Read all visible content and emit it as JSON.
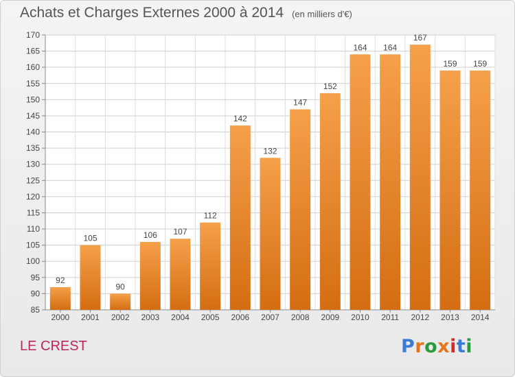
{
  "header": {
    "title": "Achats et Charges Externes 2000 à 2014",
    "unit": "(en milliers d'€)"
  },
  "footer": {
    "place": "LE CREST",
    "logo_text": "Proxiti",
    "logo_colors": [
      "#3a7bd5",
      "#e8731a",
      "#2a9b3c",
      "#e8731a",
      "#d42a2a",
      "#3a7bd5",
      "#2a9b3c"
    ]
  },
  "chart_data": {
    "type": "bar",
    "title": "Achats et Charges Externes 2000 à 2014",
    "categories": [
      "2000",
      "2001",
      "2002",
      "2003",
      "2004",
      "2005",
      "2006",
      "2007",
      "2008",
      "2009",
      "2010",
      "2011",
      "2012",
      "2013",
      "2014"
    ],
    "values": [
      92,
      105,
      90,
      106,
      107,
      112,
      142,
      132,
      147,
      152,
      164,
      164,
      167,
      159,
      159
    ],
    "ylim": [
      85,
      170
    ],
    "yticks": [
      85,
      90,
      95,
      100,
      105,
      110,
      115,
      120,
      125,
      130,
      135,
      140,
      145,
      150,
      155,
      160,
      165,
      170
    ],
    "grid": true,
    "bar_color": "#f0913a"
  }
}
